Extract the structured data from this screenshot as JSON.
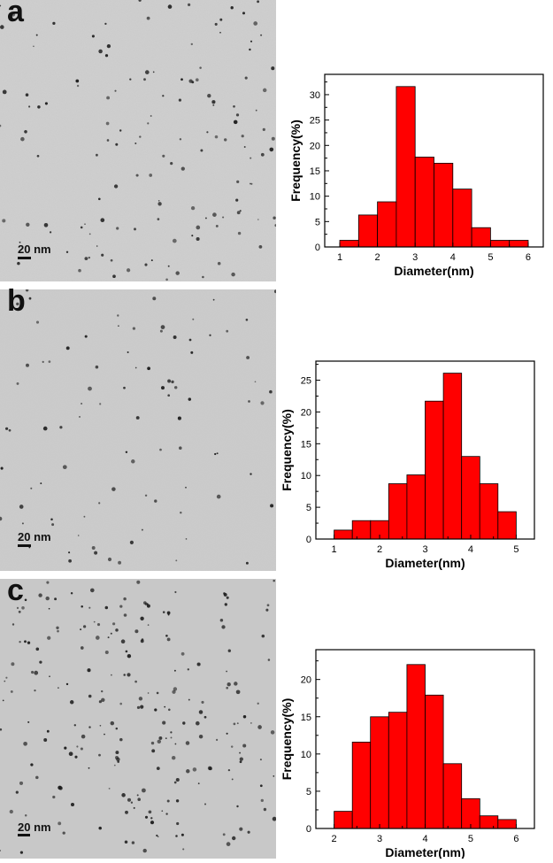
{
  "panels": [
    {
      "letter": "a",
      "scalebar": "20 nm"
    },
    {
      "letter": "b",
      "scalebar": "20 nm"
    },
    {
      "letter": "c",
      "scalebar": "20 nm"
    }
  ],
  "colors": {
    "bar_fill": "#ff0000",
    "bar_stroke": "#000000",
    "axis": "#000000"
  },
  "chart_data": [
    {
      "type": "bar",
      "panel": "a",
      "xlabel": "Diameter(nm)",
      "ylabel": "Frequency(%)",
      "xlim": [
        0.6,
        6.4
      ],
      "ylim": [
        0,
        34
      ],
      "xticks": [
        1,
        2,
        3,
        4,
        5,
        6
      ],
      "yticks": [
        0,
        5,
        10,
        15,
        20,
        25,
        30
      ],
      "bin_width": 0.5,
      "bins": [
        1.0,
        1.5,
        2.0,
        2.5,
        3.0,
        3.5,
        4.0,
        4.5,
        5.0,
        5.5
      ],
      "values": [
        1.3,
        6.3,
        8.9,
        31.6,
        17.7,
        16.5,
        11.4,
        3.8,
        1.3,
        1.3
      ]
    },
    {
      "type": "bar",
      "panel": "b",
      "xlabel": "Diameter(nm)",
      "ylabel": "Frequency(%)",
      "xlim": [
        0.6,
        5.4
      ],
      "ylim": [
        0,
        28
      ],
      "xticks": [
        1,
        2,
        3,
        4,
        5
      ],
      "yticks": [
        0,
        5,
        10,
        15,
        20,
        25
      ],
      "bin_width": 0.4,
      "bins": [
        1.0,
        1.4,
        1.8,
        2.2,
        2.6,
        3.0,
        3.4,
        3.8,
        4.2,
        4.6
      ],
      "values": [
        1.4,
        2.9,
        2.9,
        8.7,
        10.1,
        21.7,
        26.1,
        13.0,
        8.7,
        4.3
      ]
    },
    {
      "type": "bar",
      "panel": "c",
      "xlabel": "Diameter(nm)",
      "ylabel": "Frequency(%)",
      "xlim": [
        1.6,
        6.4
      ],
      "ylim": [
        0,
        24
      ],
      "xticks": [
        2,
        3,
        4,
        5,
        6
      ],
      "yticks": [
        0,
        5,
        10,
        15,
        20
      ],
      "bin_width": 0.4,
      "bins": [
        2.0,
        2.4,
        2.8,
        3.2,
        3.6,
        4.0,
        4.4,
        4.8,
        5.2,
        5.6
      ],
      "values": [
        2.3,
        11.6,
        15.0,
        15.6,
        22.0,
        17.9,
        8.7,
        4.0,
        1.7,
        1.2
      ]
    }
  ]
}
